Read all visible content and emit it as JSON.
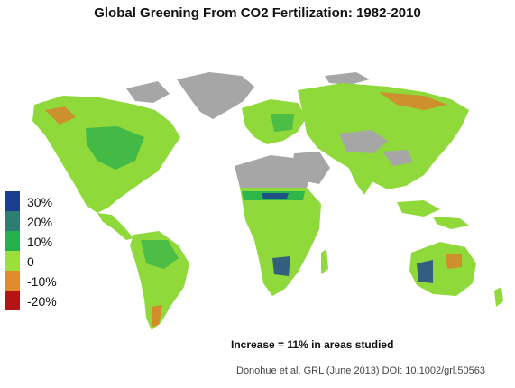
{
  "title": "Global Greening From CO2 Fertilization: 1982-2010",
  "legend": {
    "items": [
      {
        "label": "30%",
        "color": "#1d3e8e"
      },
      {
        "label": "20%",
        "color": "#2e7d73"
      },
      {
        "label": "10%",
        "color": "#22b14c"
      },
      {
        "label": "0",
        "color": "#9be03a"
      },
      {
        "label": "-10%",
        "color": "#e08a2c"
      },
      {
        "label": "-20%",
        "color": "#b41414"
      }
    ]
  },
  "colors": {
    "no_data": "#a6a6a6",
    "greening_base": "#8fd93a",
    "greening_strong": "#2fb14a",
    "browning": "#d8832b"
  },
  "stat_text": "Increase = 11% in areas studied",
  "citation": "Donohue et al, GRL (June 2013) DOI: 10.1002/grl.50563"
}
